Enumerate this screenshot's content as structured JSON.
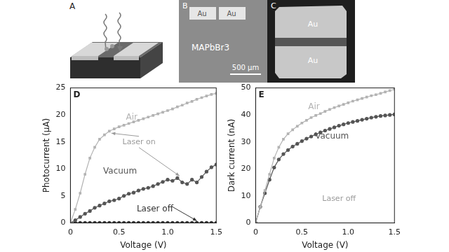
{
  "panels": [
    {
      "panel": "A"
    },
    {
      "panel": "B",
      "labels": [
        "Au",
        "Au",
        "MAPbBr3"
      ],
      "scale_bar": "500 μm"
    },
    {
      "panel": "C",
      "labels": [
        "Au",
        "Au"
      ]
    }
  ],
  "chart_data": [
    {
      "type": "line",
      "panel": "D",
      "x_label": "Voltage (V)",
      "y_label": "Photocurrent (μA)",
      "x": [
        0,
        0.05,
        0.1,
        0.15,
        0.2,
        0.25,
        0.3,
        0.35,
        0.4,
        0.45,
        0.5,
        0.55,
        0.6,
        0.65,
        0.7,
        0.75,
        0.8,
        0.85,
        0.9,
        0.95,
        1.0,
        1.05,
        1.1,
        1.15,
        1.2,
        1.25,
        1.3,
        1.35,
        1.4,
        1.45,
        1.5
      ],
      "series": [
        {
          "name": "Air",
          "color": "#b3b3b3",
          "marker": "square",
          "line_style": "solid",
          "values": [
            0,
            2.5,
            5.5,
            9,
            12,
            14,
            15.5,
            16.3,
            17,
            17.4,
            17.8,
            18.1,
            18.4,
            18.7,
            19,
            19.3,
            19.6,
            19.9,
            20.2,
            20.5,
            20.8,
            21.1,
            21.5,
            21.8,
            22.2,
            22.5,
            22.9,
            23.2,
            23.5,
            23.8,
            24
          ]
        },
        {
          "name": "Vacuum",
          "color": "#555555",
          "marker": "circle",
          "line_style": "solid",
          "values": [
            0,
            0.5,
            1.1,
            1.7,
            2.2,
            2.8,
            3.2,
            3.6,
            4.0,
            4.2,
            4.5,
            5.0,
            5.4,
            5.6,
            6.0,
            6.3,
            6.5,
            6.8,
            7.2,
            7.6,
            8.0,
            7.8,
            8.3,
            7.5,
            7.2,
            8.0,
            7.5,
            8.5,
            9.5,
            10.3,
            10.8
          ]
        },
        {
          "name": "Laser off",
          "color": "#333333",
          "marker": "circle",
          "line_style": "solid",
          "values": [
            0,
            0,
            0,
            0,
            0,
            0,
            0,
            0,
            0,
            0,
            0,
            0,
            0,
            0,
            0,
            0,
            0,
            0,
            0,
            0,
            0,
            0,
            0,
            0,
            0,
            0,
            0,
            0,
            0,
            0,
            0
          ]
        }
      ],
      "annotations": [
        "Laser on"
      ],
      "xlim": [
        0,
        1.5
      ],
      "xticks": [
        0,
        0.5,
        {
          "value": 1,
          "label": "1.0"
        },
        1.5
      ],
      "ylim": [
        0,
        25
      ],
      "yticks": [
        0,
        5,
        10,
        15,
        20,
        25
      ],
      "grid": false
    },
    {
      "type": "line",
      "panel": "E",
      "x_label": "Voltage (V)",
      "y_label": "Dark current (nA)",
      "x": [
        0,
        0.05,
        0.1,
        0.15,
        0.2,
        0.25,
        0.3,
        0.35,
        0.4,
        0.45,
        0.5,
        0.55,
        0.6,
        0.65,
        0.7,
        0.75,
        0.8,
        0.85,
        0.9,
        0.95,
        1.0,
        1.05,
        1.1,
        1.15,
        1.2,
        1.25,
        1.3,
        1.35,
        1.4,
        1.45,
        1.5
      ],
      "series": [
        {
          "name": "Air",
          "color": "#b3b3b3",
          "marker": "square",
          "line_style": "solid",
          "values": [
            0,
            6,
            12,
            18,
            24,
            28,
            31,
            33,
            34.5,
            35.8,
            37,
            38,
            39,
            39.8,
            40.5,
            41.3,
            42,
            42.7,
            43.3,
            43.9,
            44.5,
            45.1,
            45.6,
            46.1,
            46.6,
            47.1,
            47.5,
            48,
            48.5,
            49,
            49.5
          ]
        },
        {
          "name": "Vacuum",
          "color": "#555555",
          "marker": "circle",
          "line_style": "solid",
          "values": [
            0,
            6,
            11,
            16,
            20.5,
            23.5,
            25.5,
            27,
            28.3,
            29.3,
            30.3,
            31.2,
            32,
            32.8,
            33.5,
            34.2,
            34.8,
            35.4,
            36,
            36.5,
            37,
            37.4,
            37.8,
            38.2,
            38.6,
            39,
            39.3,
            39.6,
            39.8,
            40,
            40.2
          ]
        }
      ],
      "annotations": [
        "Laser off"
      ],
      "xlim": [
        0,
        1.5
      ],
      "xticks": [
        0,
        0.5,
        {
          "value": 1,
          "label": "1.0"
        },
        1.5
      ],
      "ylim": [
        0,
        50
      ],
      "yticks": [
        0,
        10,
        20,
        30,
        40,
        50
      ],
      "grid": false
    }
  ]
}
